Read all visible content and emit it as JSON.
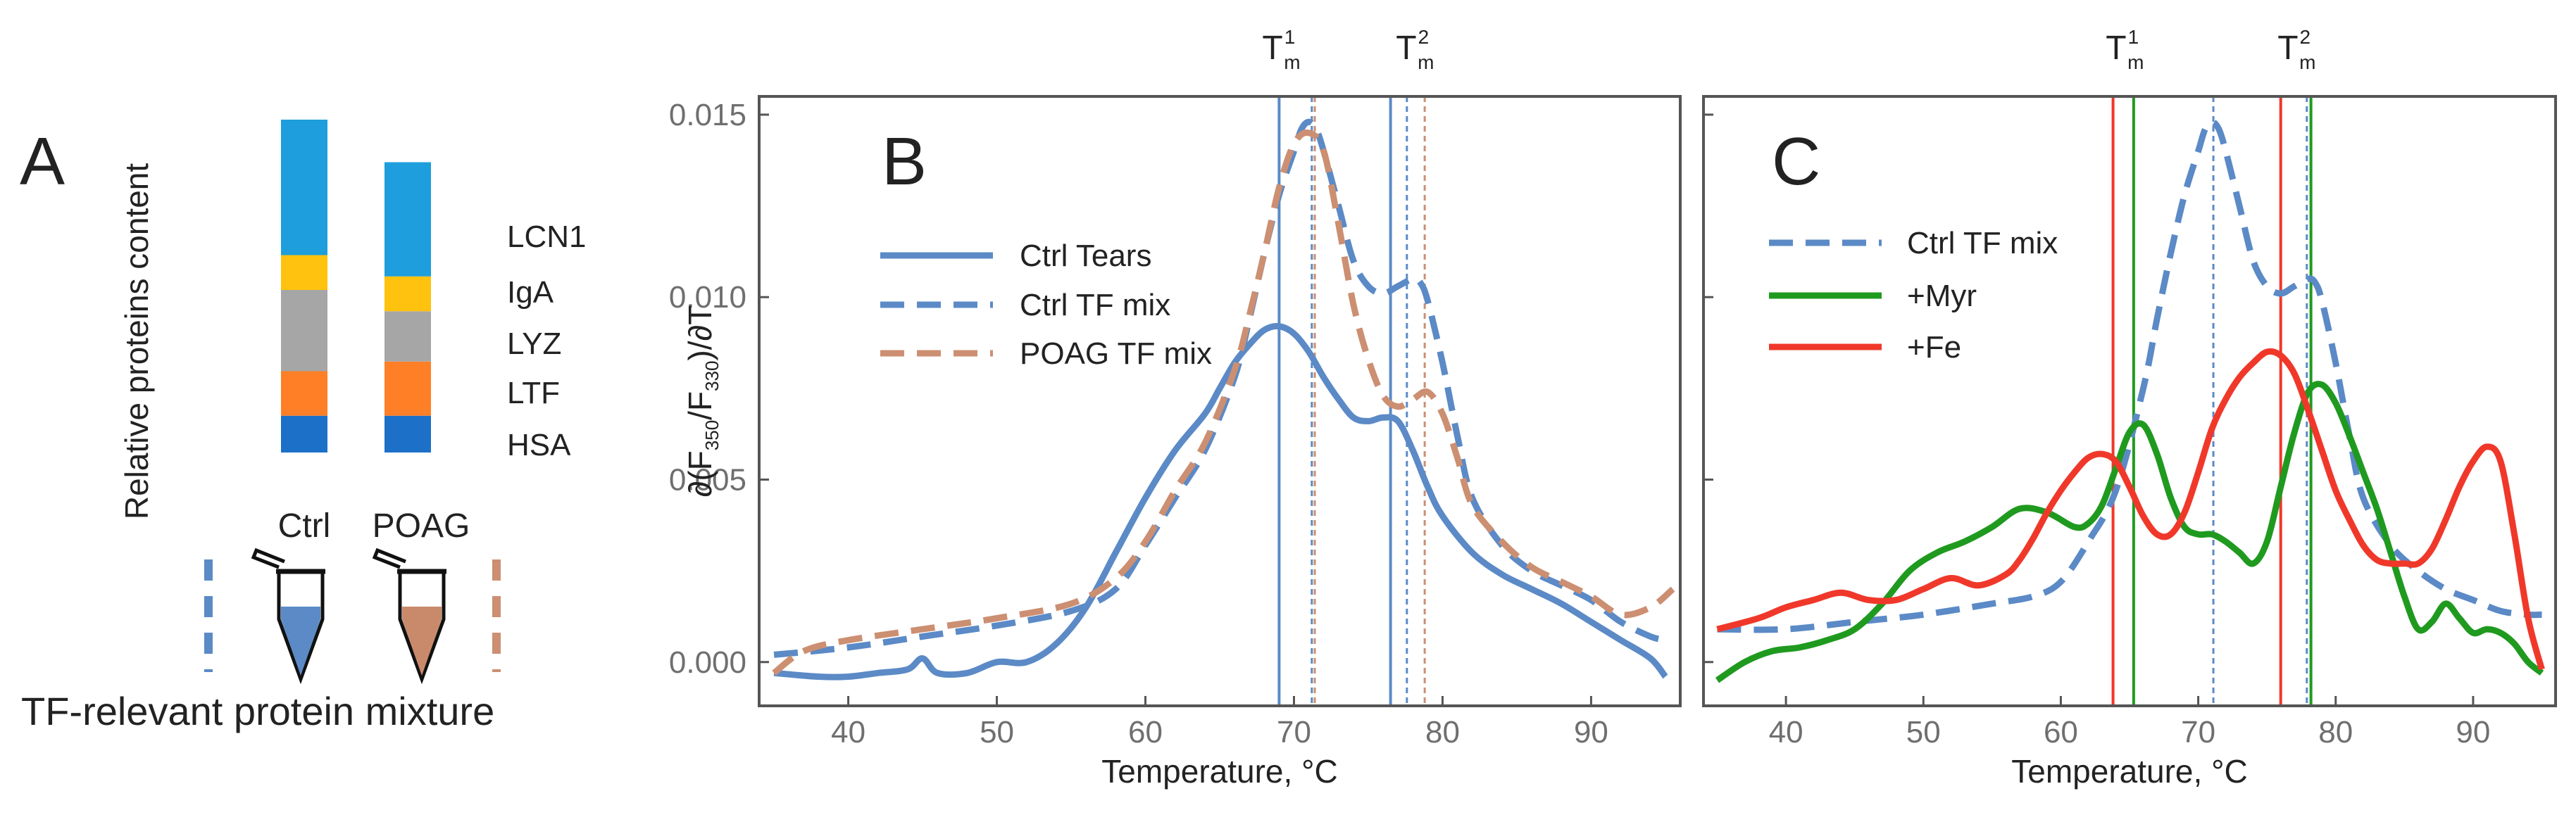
{
  "colors": {
    "ctrl": "#5b8ac6",
    "poag": "#cc8f72",
    "myr": "#1f9a1f",
    "fe": "#f0382a",
    "frame": "#555555",
    "lcn1": "#1e9edc",
    "iga": "#ffc20e",
    "lyz": "#a6a6a6",
    "ltf": "#ff7f27",
    "hsa": "#1d70c8",
    "tube_ctrl_fill": "#5b8ac6",
    "tube_poag_fill": "#c98a6c"
  },
  "panel_a": {
    "letter": "A",
    "y_label": "Relative proteins content",
    "bottom_label": "TF-relevant protein mixture",
    "categories": [
      "Ctrl",
      "POAG"
    ],
    "segments_order": [
      "HSA",
      "LTF",
      "LYZ",
      "IgA",
      "LCN1"
    ],
    "legend_order": [
      "LCN1",
      "IgA",
      "LYZ",
      "LTF",
      "HSA"
    ],
    "stacks": [
      {
        "name": "Ctrl",
        "HSA": 9.5,
        "LTF": 11.5,
        "LYZ": 21.0,
        "IgA": 9.0,
        "LCN1": 35.0
      },
      {
        "name": "POAG",
        "HSA": 9.5,
        "LTF": 14.0,
        "LYZ": 13.0,
        "IgA": 9.0,
        "LCN1": 29.5
      }
    ]
  },
  "chart_data": [
    {
      "type": "line",
      "panel": "B",
      "xlabel": "Temperature, °C",
      "ylabel": "∂(F350/F330)/∂T",
      "ylabel_parts": {
        "pre": "∂(F",
        "sub1": "350",
        "mid": "/F",
        "sub2": "330",
        "post": ")/∂T"
      },
      "xlim": [
        34,
        96
      ],
      "ylim": [
        -0.0012,
        0.0155
      ],
      "xticks": [
        40,
        50,
        60,
        70,
        80,
        90
      ],
      "yticks": [
        0.0,
        0.005,
        0.01,
        0.015
      ],
      "ytick_labels": [
        "0.000",
        "0.005",
        "0.010",
        "0.015"
      ],
      "tm_labels": [
        {
          "x": 69,
          "base": "T",
          "sub": "m",
          "sup": "1"
        },
        {
          "x": 78,
          "base": "T",
          "sub": "m",
          "sup": "2"
        }
      ],
      "vlines": [
        {
          "x": 69,
          "series": "Ctrl Tears",
          "style": "solid"
        },
        {
          "x": 76.5,
          "series": "Ctrl Tears",
          "style": "solid"
        },
        {
          "x": 71.2,
          "series": "Ctrl TF mix",
          "style": "dotted"
        },
        {
          "x": 77.6,
          "series": "Ctrl TF mix",
          "style": "dotted"
        },
        {
          "x": 71.4,
          "series": "POAG TF mix",
          "style": "dotted"
        },
        {
          "x": 78.8,
          "series": "POAG TF mix",
          "style": "dotted"
        }
      ],
      "series": [
        {
          "name": "Ctrl Tears",
          "color": "ctrl",
          "dash": "solid",
          "x": [
            35,
            38,
            40,
            42,
            44,
            45,
            46,
            48,
            50,
            52,
            54,
            56,
            58,
            60,
            62,
            64,
            65,
            66,
            67,
            68,
            69,
            70,
            71,
            72,
            73,
            74,
            75,
            76,
            77,
            78,
            79,
            80,
            82,
            84,
            86,
            88,
            90,
            92,
            94,
            95
          ],
          "y": [
            -0.0003,
            -0.0004,
            -0.0004,
            -0.0003,
            -0.0002,
            0.0001,
            -0.0003,
            -0.0003,
            0.0,
            0.0,
            0.0005,
            0.0015,
            0.003,
            0.0045,
            0.0058,
            0.0068,
            0.0075,
            0.0082,
            0.0087,
            0.0091,
            0.0092,
            0.009,
            0.0085,
            0.0078,
            0.0072,
            0.0067,
            0.0066,
            0.0067,
            0.0066,
            0.0058,
            0.0048,
            0.004,
            0.003,
            0.0024,
            0.002,
            0.0016,
            0.0011,
            0.0006,
            0.0001,
            -0.0004
          ]
        },
        {
          "name": "Ctrl TF mix",
          "color": "ctrl",
          "dash": "dashed",
          "x": [
            35,
            40,
            45,
            50,
            55,
            58,
            60,
            62,
            64,
            66,
            67,
            68,
            69,
            70,
            70.5,
            71,
            71.5,
            72,
            73,
            74,
            75,
            76,
            77,
            78,
            78.5,
            79,
            80,
            81,
            82,
            84,
            86,
            88,
            90,
            92,
            94,
            95
          ],
          "y": [
            0.0002,
            0.0004,
            0.0007,
            0.001,
            0.0014,
            0.002,
            0.0032,
            0.0045,
            0.0058,
            0.0078,
            0.0094,
            0.0112,
            0.0128,
            0.014,
            0.0146,
            0.0148,
            0.0146,
            0.014,
            0.0125,
            0.011,
            0.0103,
            0.0101,
            0.0103,
            0.0105,
            0.0104,
            0.0099,
            0.0082,
            0.0062,
            0.0045,
            0.0032,
            0.0025,
            0.0021,
            0.0017,
            0.0011,
            0.0007,
            0.0006
          ]
        },
        {
          "name": "POAG TF mix",
          "color": "poag",
          "dash": "dashed",
          "x": [
            35,
            37,
            40,
            45,
            50,
            55,
            58,
            60,
            62,
            64,
            66,
            67,
            68,
            69,
            70,
            71,
            72,
            73,
            74,
            75,
            76,
            77,
            78,
            79,
            80,
            81,
            82,
            84,
            86,
            88,
            90,
            92,
            94,
            95.5
          ],
          "y": [
            -0.0003,
            0.0003,
            0.0006,
            0.0009,
            0.0012,
            0.0016,
            0.0023,
            0.0033,
            0.0047,
            0.006,
            0.008,
            0.0095,
            0.0112,
            0.013,
            0.0142,
            0.0145,
            0.014,
            0.012,
            0.0098,
            0.0083,
            0.0073,
            0.007,
            0.0072,
            0.0074,
            0.0068,
            0.0056,
            0.0043,
            0.0033,
            0.0026,
            0.0022,
            0.0018,
            0.0013,
            0.0015,
            0.002
          ]
        }
      ],
      "legend": {
        "position": "upper-left",
        "items": [
          "Ctrl Tears",
          "Ctrl TF mix",
          "POAG TF mix"
        ]
      }
    },
    {
      "type": "line",
      "panel": "C",
      "xlabel": "Temperature, °C",
      "xlim": [
        34,
        96
      ],
      "ylim": [
        -0.0012,
        0.0155
      ],
      "xticks": [
        40,
        50,
        60,
        70,
        80,
        90
      ],
      "yticks": [
        0.0,
        0.005,
        0.01,
        0.015
      ],
      "tm_labels": [
        {
          "x": 64.5,
          "base": "T",
          "sub": "m",
          "sup": "1"
        },
        {
          "x": 77,
          "base": "T",
          "sub": "m",
          "sup": "2"
        }
      ],
      "vlines": [
        {
          "x": 63.8,
          "series": "+Fe",
          "style": "solid"
        },
        {
          "x": 65.3,
          "series": "+Myr",
          "style": "solid"
        },
        {
          "x": 71.1,
          "series": "Ctrl TF mix",
          "style": "dotted"
        },
        {
          "x": 76.0,
          "series": "+Fe",
          "style": "solid"
        },
        {
          "x": 77.9,
          "series": "Ctrl TF mix",
          "style": "dotted"
        },
        {
          "x": 78.2,
          "series": "+Myr",
          "style": "solid"
        }
      ],
      "series": [
        {
          "name": "Ctrl TF mix",
          "color": "ctrl",
          "dash": "dashed",
          "x": [
            35,
            40,
            45,
            50,
            55,
            58,
            60,
            62,
            64,
            66,
            67,
            68,
            69,
            70,
            70.5,
            71,
            71.5,
            72,
            73,
            74,
            75,
            76,
            77,
            78,
            78.5,
            79,
            80,
            81,
            82,
            84,
            86,
            88,
            90,
            92,
            94,
            95
          ],
          "y": [
            0.0009,
            0.0009,
            0.0011,
            0.0013,
            0.0016,
            0.0018,
            0.0022,
            0.0033,
            0.0047,
            0.0075,
            0.0094,
            0.0112,
            0.0128,
            0.014,
            0.0146,
            0.0148,
            0.0146,
            0.014,
            0.0125,
            0.011,
            0.0103,
            0.0101,
            0.0103,
            0.0105,
            0.0104,
            0.0099,
            0.0082,
            0.0062,
            0.0045,
            0.0032,
            0.0025,
            0.002,
            0.0017,
            0.0014,
            0.0013,
            0.0013
          ]
        },
        {
          "name": "+Myr",
          "color": "myr",
          "dash": "solid",
          "x": [
            35,
            37,
            39,
            41,
            43,
            45,
            47,
            49,
            51,
            53,
            55,
            57,
            59,
            61,
            62,
            63,
            64,
            65,
            66,
            67,
            68,
            69,
            70,
            71,
            72,
            73,
            74,
            75,
            76,
            77,
            78,
            79,
            80,
            81,
            82,
            83,
            84,
            85,
            86,
            87,
            88,
            89,
            90,
            91,
            92,
            93,
            94,
            95
          ],
          "y": [
            -0.0005,
            0.0,
            0.0003,
            0.0004,
            0.0006,
            0.0009,
            0.0016,
            0.0025,
            0.003,
            0.0033,
            0.0037,
            0.0042,
            0.0041,
            0.0037,
            0.0038,
            0.0043,
            0.0053,
            0.0063,
            0.0065,
            0.0057,
            0.0045,
            0.0037,
            0.0035,
            0.0035,
            0.0033,
            0.003,
            0.0027,
            0.0033,
            0.0048,
            0.0063,
            0.0074,
            0.0076,
            0.0071,
            0.0062,
            0.0052,
            0.0042,
            0.003,
            0.0018,
            0.0009,
            0.0011,
            0.0016,
            0.0012,
            0.0008,
            0.0009,
            0.0008,
            0.0005,
            0.0,
            -0.0003
          ]
        },
        {
          "name": "+Fe",
          "color": "fe",
          "dash": "solid",
          "x": [
            35,
            38,
            40,
            42,
            44,
            46,
            48,
            50,
            52,
            54,
            56,
            57,
            58,
            59,
            60,
            61,
            62,
            63,
            64,
            65,
            66,
            67,
            68,
            69,
            70,
            71,
            72,
            73,
            74,
            75,
            76,
            77,
            78,
            79,
            80,
            81,
            82,
            83,
            84,
            85,
            86,
            87,
            88,
            89,
            90,
            91,
            92,
            93,
            94,
            95
          ],
          "y": [
            0.0009,
            0.0012,
            0.0015,
            0.0017,
            0.0019,
            0.0017,
            0.0017,
            0.002,
            0.0023,
            0.0021,
            0.0024,
            0.0028,
            0.0034,
            0.0041,
            0.0047,
            0.0052,
            0.0056,
            0.0057,
            0.0055,
            0.0048,
            0.004,
            0.0035,
            0.0035,
            0.0041,
            0.0052,
            0.0064,
            0.0072,
            0.0078,
            0.0082,
            0.0085,
            0.0084,
            0.0079,
            0.0069,
            0.0058,
            0.0047,
            0.0039,
            0.0032,
            0.0028,
            0.0027,
            0.0027,
            0.0027,
            0.0031,
            0.0039,
            0.0048,
            0.0055,
            0.0059,
            0.0055,
            0.0035,
            0.0012,
            -0.0002
          ]
        }
      ],
      "legend": {
        "position": "upper-left",
        "items": [
          "Ctrl TF mix",
          "+Myr",
          "+Fe"
        ]
      }
    }
  ]
}
